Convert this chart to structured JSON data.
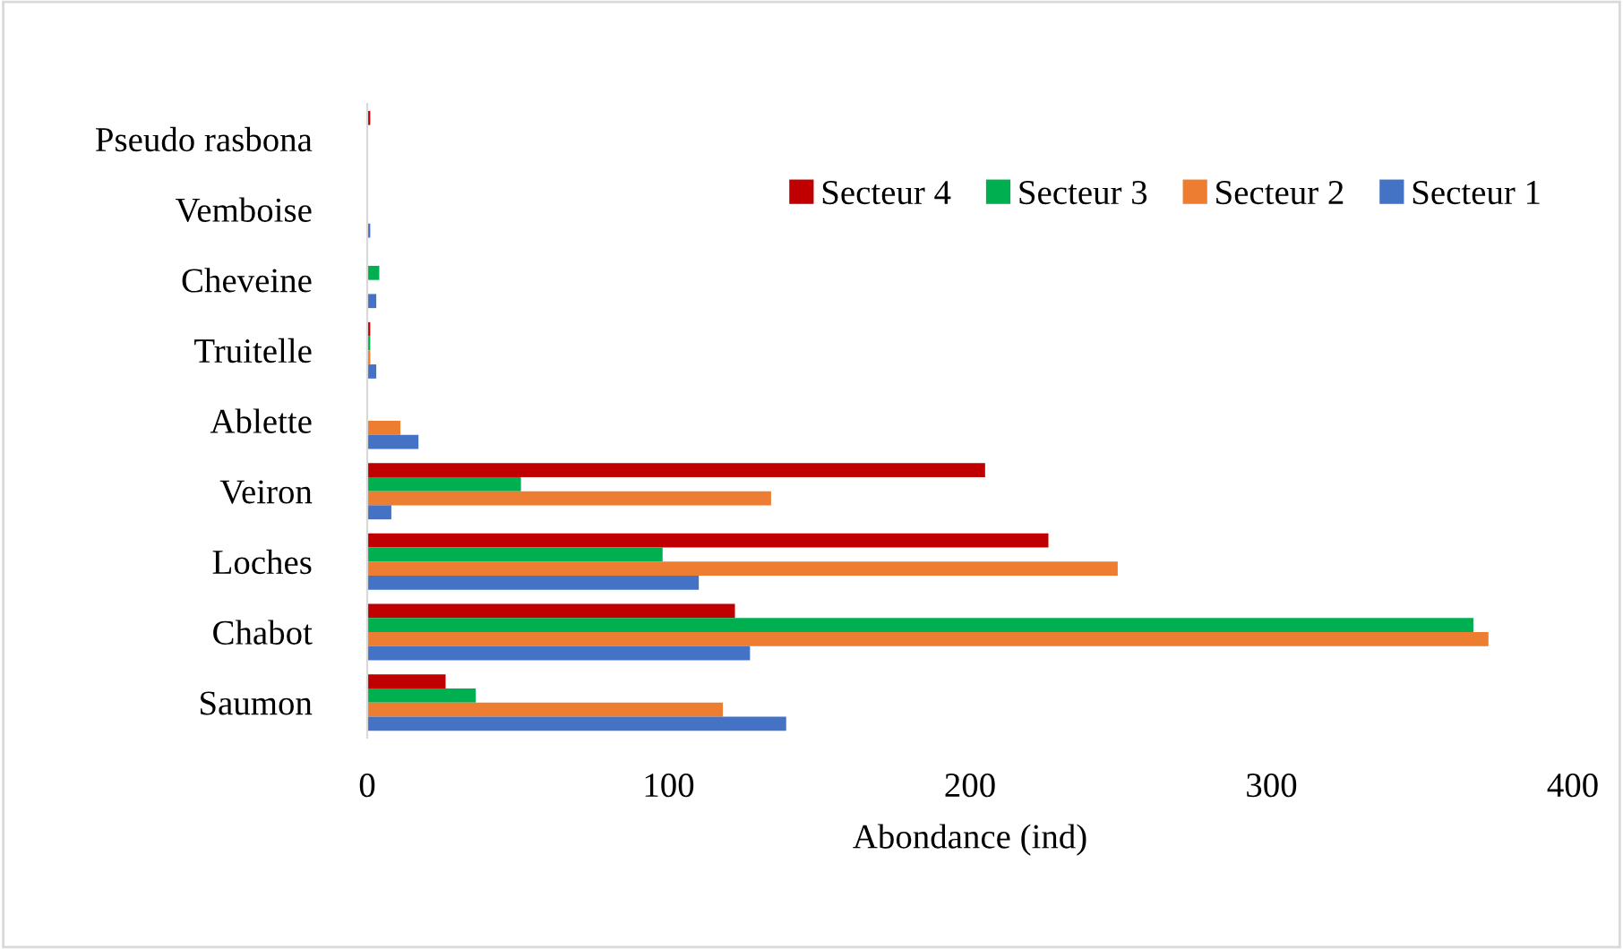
{
  "chart_data": {
    "type": "bar",
    "orientation": "horizontal",
    "xlabel": "Abondance (ind)",
    "categories": [
      "Pseudo rasbona",
      "Vemboise",
      "Cheveine",
      "Truitelle",
      "Ablette",
      "Veiron",
      "Loches",
      "Chabot",
      "Saumon"
    ],
    "series": [
      {
        "name": "Secteur 4",
        "color": "#c00000",
        "values": [
          1,
          0,
          0,
          1,
          0,
          205,
          226,
          122,
          26
        ]
      },
      {
        "name": "Secteur 3",
        "color": "#00b050",
        "values": [
          0,
          0,
          4,
          1,
          0,
          51,
          98,
          367,
          36
        ]
      },
      {
        "name": "Secteur 2",
        "color": "#ed7d31",
        "values": [
          0,
          0,
          0,
          1,
          11,
          134,
          249,
          372,
          118
        ]
      },
      {
        "name": "Secteur 1",
        "color": "#4472c4",
        "values": [
          0,
          1,
          3,
          3,
          17,
          8,
          110,
          127,
          139
        ]
      }
    ],
    "xlim": [
      0,
      400
    ],
    "xticks": [
      0,
      100,
      200,
      300,
      400
    ],
    "grid": false,
    "legend": "top right"
  }
}
